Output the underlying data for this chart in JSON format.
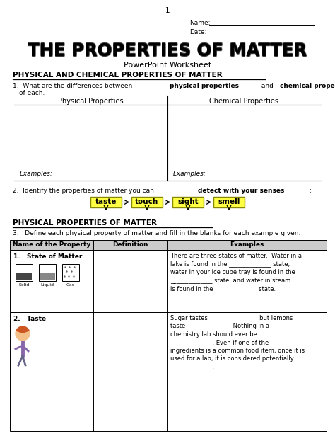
{
  "page_num": "1",
  "name_label": "Name:",
  "date_label": "Date:",
  "main_title": "THE PROPERTIES OF MATTER",
  "subtitle": "PowerPoint Worksheet",
  "section1_title": "PHYSICAL AND CHEMICAL PROPERTIES OF MATTER",
  "col1_header": "Physical Properties",
  "col2_header": "Chemical Properties",
  "examples_left": "Examples:",
  "examples_right": "Examples:",
  "q2_line1": "2.  Identify the properties of matter you can ",
  "q2_bold": "detect with your senses",
  "q2_end": ":",
  "senses": [
    "taste",
    "touch",
    "sight",
    "smell"
  ],
  "section2_title": "PHYSICAL PROPERTIES OF MATTER",
  "q3_text": "3.   Define each physical property of matter and fill in the blanks for each example given.",
  "table_header1": "Name of the Property",
  "table_header2": "Definition",
  "table_header3": "Examples",
  "table_header_bg": "#CCCCCC",
  "row1_prop": "1.   State of Matter",
  "row1_examples": "There are three states of matter.  Water in a\nlake is found in the ______________ state,\nwater in your ice cube tray is found in the\n______________ state, and water in steam\nis found in the ______________ state.",
  "row2_prop": "2.   Taste",
  "row2_examples": "Sugar tastes ________________ but lemons\ntaste ______________. Nothing in a\nchemistry lab should ever be\n______________. Even if one of the\ningredients is a common food item, once it is\nused for a lab, it is considered potentially\n______________."
}
